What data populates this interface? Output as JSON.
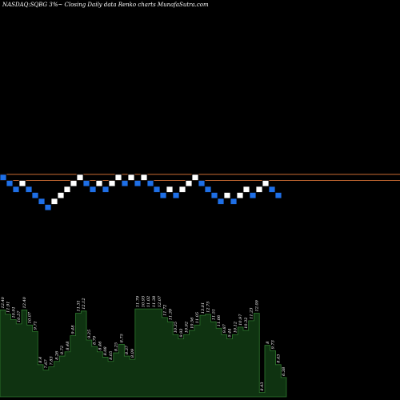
{
  "header": {
    "title": "NASDAQ:SQBG 3%~  Closing Daily data Renko charts MunafaSutra.com"
  },
  "colors": {
    "background": "#000000",
    "up_brick": "#ffffff",
    "down_brick": "#1e6fe6",
    "brick_edge": "#000000",
    "reference_line": "#c86a32",
    "volume_fill": "#0f3311",
    "volume_edge": "#2f7a2f",
    "text": "#ffffff"
  },
  "chart_data": {
    "type": "renko",
    "title": "NASDAQ:SQBG 3%~  Closing Daily data Renko charts MunafaSutra.com",
    "brick_size_label": "3%",
    "reference_levels": [
      0.5,
      -0.5
    ],
    "bricks": [
      {
        "dir": "down",
        "level": 0
      },
      {
        "dir": "down",
        "level": -1
      },
      {
        "dir": "down",
        "level": -2
      },
      {
        "dir": "up",
        "level": -1
      },
      {
        "dir": "down",
        "level": -2
      },
      {
        "dir": "down",
        "level": -3
      },
      {
        "dir": "down",
        "level": -4
      },
      {
        "dir": "down",
        "level": -5
      },
      {
        "dir": "up",
        "level": -4
      },
      {
        "dir": "up",
        "level": -3
      },
      {
        "dir": "up",
        "level": -2
      },
      {
        "dir": "up",
        "level": -1
      },
      {
        "dir": "up",
        "level": 0
      },
      {
        "dir": "down",
        "level": -1
      },
      {
        "dir": "down",
        "level": -2
      },
      {
        "dir": "up",
        "level": -1
      },
      {
        "dir": "down",
        "level": -2
      },
      {
        "dir": "up",
        "level": -1
      },
      {
        "dir": "up",
        "level": 0
      },
      {
        "dir": "down",
        "level": -1
      },
      {
        "dir": "up",
        "level": 0
      },
      {
        "dir": "down",
        "level": -1
      },
      {
        "dir": "up",
        "level": 0
      },
      {
        "dir": "down",
        "level": -1
      },
      {
        "dir": "down",
        "level": -2
      },
      {
        "dir": "down",
        "level": -3
      },
      {
        "dir": "up",
        "level": -2
      },
      {
        "dir": "down",
        "level": -3
      },
      {
        "dir": "up",
        "level": -2
      },
      {
        "dir": "up",
        "level": -1
      },
      {
        "dir": "up",
        "level": 0
      },
      {
        "dir": "down",
        "level": -1
      },
      {
        "dir": "down",
        "level": -2
      },
      {
        "dir": "down",
        "level": -3
      },
      {
        "dir": "down",
        "level": -4
      },
      {
        "dir": "up",
        "level": -3
      },
      {
        "dir": "down",
        "level": -4
      },
      {
        "dir": "up",
        "level": -3
      },
      {
        "dir": "up",
        "level": -2
      },
      {
        "dir": "down",
        "level": -3
      },
      {
        "dir": "up",
        "level": -2
      },
      {
        "dir": "up",
        "level": -1
      },
      {
        "dir": "down",
        "level": -2
      },
      {
        "dir": "down",
        "level": -3
      }
    ],
    "volume": {
      "series": [
        {
          "value": 81,
          "label": "12.40"
        },
        {
          "value": 77,
          "label": "11.91"
        },
        {
          "value": 72,
          "label": "10.91"
        },
        {
          "value": 68,
          "label": "10.57"
        },
        {
          "value": 81,
          "label": "12.40"
        },
        {
          "value": 67,
          "label": "10.07"
        },
        {
          "value": 61,
          "label": "9.71"
        },
        {
          "value": 30,
          "label": "8.4"
        },
        {
          "value": 25,
          "label": "7.67"
        },
        {
          "value": 28,
          "label": "7.83"
        },
        {
          "value": 33,
          "label": "8.26"
        },
        {
          "value": 38,
          "label": "8.72"
        },
        {
          "value": 42,
          "label": "8.48"
        },
        {
          "value": 57,
          "label": "9.48"
        },
        {
          "value": 78,
          "label": "11.31"
        },
        {
          "value": 80,
          "label": "12.12"
        },
        {
          "value": 53,
          "label": "9.25"
        },
        {
          "value": 47,
          "label": "8.79"
        },
        {
          "value": 42,
          "label": "8.46"
        },
        {
          "value": 37,
          "label": "8.08"
        },
        {
          "value": 33,
          "label": "8.05"
        },
        {
          "value": 41,
          "label": "8.25"
        },
        {
          "value": 49,
          "label": "8.75"
        },
        {
          "value": 38,
          "label": "8.37"
        },
        {
          "value": 35,
          "label": "8.09"
        },
        {
          "value": 82,
          "label": "11.79"
        },
        {
          "value": 82,
          "label": "10.93"
        },
        {
          "value": 82,
          "label": "11.02"
        },
        {
          "value": 82,
          "label": "11.38"
        },
        {
          "value": 82,
          "label": "12.07"
        },
        {
          "value": 74,
          "label": "11.72"
        },
        {
          "value": 70,
          "label": "11.39"
        },
        {
          "value": 58,
          "label": "10.35"
        },
        {
          "value": 54,
          "label": "9.93"
        },
        {
          "value": 58,
          "label": "10.92"
        },
        {
          "value": 62,
          "label": "10.56"
        },
        {
          "value": 67,
          "label": "11.05"
        },
        {
          "value": 76,
          "label": "13.01"
        },
        {
          "value": 77,
          "label": "12.75"
        },
        {
          "value": 70,
          "label": "11.51"
        },
        {
          "value": 64,
          "label": "11.06"
        },
        {
          "value": 58,
          "label": "9.87"
        },
        {
          "value": 54,
          "label": "9.44"
        },
        {
          "value": 58,
          "label": "10.12"
        },
        {
          "value": 65,
          "label": "10.97"
        },
        {
          "value": 62,
          "label": "10.32"
        },
        {
          "value": 71,
          "label": "11.23"
        },
        {
          "value": 78,
          "label": "12.09"
        },
        {
          "value": 4,
          "label": "8.43"
        },
        {
          "value": 48,
          "label": "8"
        },
        {
          "value": 43,
          "label": "9.73"
        },
        {
          "value": 30,
          "label": "8.43"
        },
        {
          "value": 18,
          "label": "6.38"
        }
      ]
    }
  }
}
